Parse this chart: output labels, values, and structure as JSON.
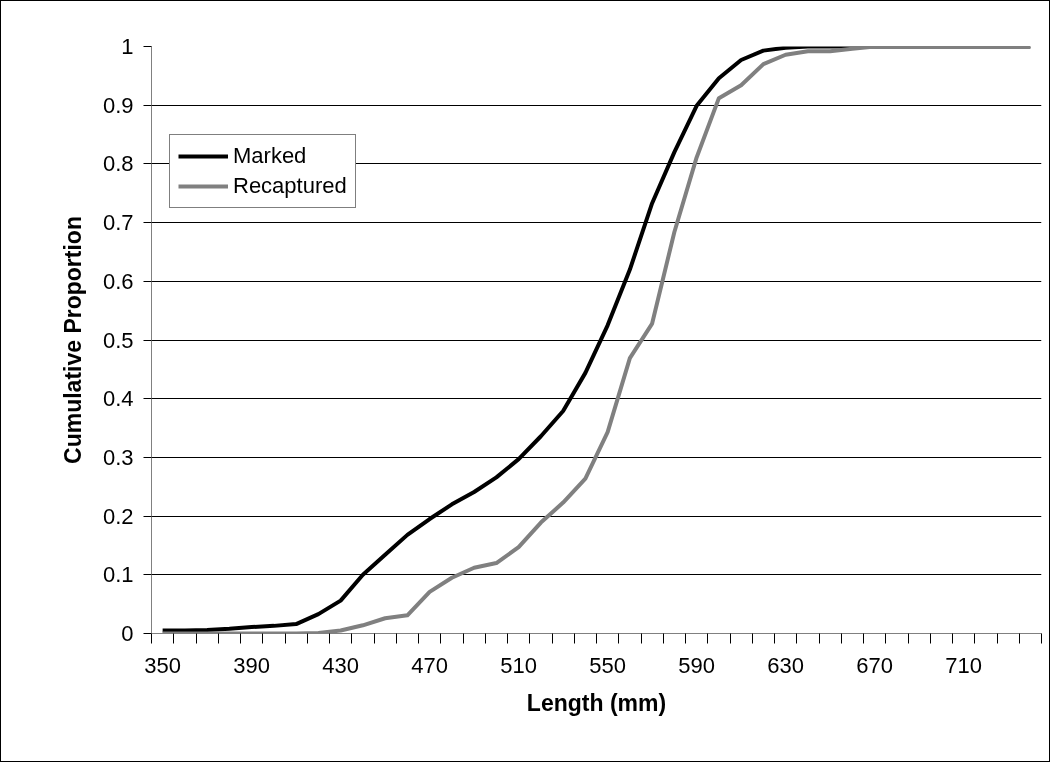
{
  "chart_data": {
    "type": "line",
    "xlabel": "Length (mm)",
    "ylabel": "Cumulative Proportion",
    "x": [
      350,
      360,
      370,
      380,
      390,
      400,
      410,
      420,
      430,
      440,
      450,
      460,
      470,
      480,
      490,
      500,
      510,
      520,
      530,
      540,
      550,
      560,
      570,
      580,
      590,
      600,
      610,
      620,
      630,
      640,
      650,
      660,
      670,
      680,
      690,
      700,
      710,
      720,
      730,
      740
    ],
    "series": [
      {
        "name": "Marked",
        "color": "#000000",
        "values": [
          0.005,
          0.005,
          0.006,
          0.008,
          0.011,
          0.013,
          0.016,
          0.033,
          0.056,
          0.1,
          0.134,
          0.168,
          0.195,
          0.22,
          0.241,
          0.266,
          0.297,
          0.336,
          0.379,
          0.444,
          0.525,
          0.62,
          0.733,
          0.82,
          0.899,
          0.946,
          0.977,
          0.993,
          0.998,
          1,
          1,
          1,
          1,
          1,
          1,
          1,
          1,
          1,
          1,
          1
        ]
      },
      {
        "name": "Recaptured",
        "color": "#808080",
        "values": [
          0,
          0,
          0,
          0,
          0,
          0,
          0,
          0.001,
          0.005,
          0.014,
          0.026,
          0.031,
          0.071,
          0.095,
          0.112,
          0.12,
          0.147,
          0.189,
          0.223,
          0.264,
          0.343,
          0.469,
          0.528,
          0.684,
          0.811,
          0.912,
          0.934,
          0.97,
          0.986,
          0.992,
          0.992,
          0.996,
          1,
          1,
          1,
          1,
          1,
          1,
          1,
          1
        ]
      }
    ],
    "xlim": [
      345,
      745
    ],
    "xticks": [
      350,
      390,
      430,
      470,
      510,
      550,
      590,
      630,
      670,
      710,
      {
        "value": 345,
        "label": null
      },
      {
        "value": 355,
        "label": null
      },
      {
        "value": 365,
        "label": null
      },
      {
        "value": 375,
        "label": null
      },
      {
        "value": 385,
        "label": null
      },
      {
        "value": 395,
        "label": null
      },
      {
        "value": 405,
        "label": null
      },
      {
        "value": 415,
        "label": null
      },
      {
        "value": 425,
        "label": null
      },
      {
        "value": 435,
        "label": null
      },
      {
        "value": 445,
        "label": null
      },
      {
        "value": 455,
        "label": null
      },
      {
        "value": 465,
        "label": null
      },
      {
        "value": 475,
        "label": null
      },
      {
        "value": 485,
        "label": null
      },
      {
        "value": 495,
        "label": null
      },
      {
        "value": 505,
        "label": null
      },
      {
        "value": 515,
        "label": null
      },
      {
        "value": 525,
        "label": null
      },
      {
        "value": 535,
        "label": null
      },
      {
        "value": 545,
        "label": null
      },
      {
        "value": 555,
        "label": null
      },
      {
        "value": 565,
        "label": null
      },
      {
        "value": 575,
        "label": null
      },
      {
        "value": 585,
        "label": null
      },
      {
        "value": 595,
        "label": null
      },
      {
        "value": 605,
        "label": null
      },
      {
        "value": 615,
        "label": null
      },
      {
        "value": 625,
        "label": null
      },
      {
        "value": 635,
        "label": null
      },
      {
        "value": 645,
        "label": null
      },
      {
        "value": 655,
        "label": null
      },
      {
        "value": 665,
        "label": null
      },
      {
        "value": 675,
        "label": null
      },
      {
        "value": 685,
        "label": null
      },
      {
        "value": 695,
        "label": null
      },
      {
        "value": 705,
        "label": null
      },
      {
        "value": 715,
        "label": null
      },
      {
        "value": 725,
        "label": null
      },
      {
        "value": 735,
        "label": null
      },
      {
        "value": 745,
        "label": null
      }
    ],
    "ylim": [
      0,
      1
    ],
    "yticks": [
      0,
      0.1,
      0.2,
      0.3,
      0.4,
      0.5,
      0.6,
      0.7,
      0.8,
      0.9,
      1
    ],
    "grid": "y",
    "legend": "top left",
    "marker": "none",
    "line_style": "solid"
  }
}
